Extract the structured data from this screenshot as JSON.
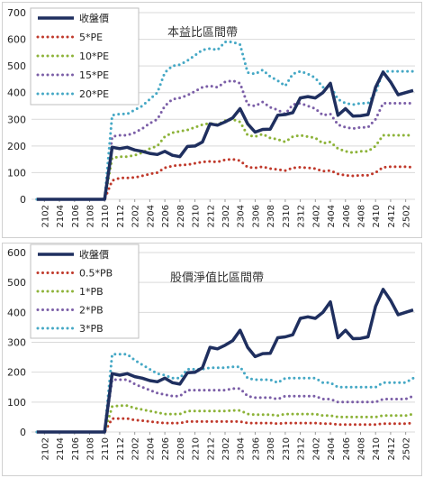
{
  "chart_data": [
    {
      "type": "line",
      "title": "本益比區間帶",
      "xlabel": "",
      "ylabel": "",
      "ylim": [
        0,
        700
      ],
      "yticks": [
        0,
        100,
        200,
        300,
        400,
        500,
        600,
        700
      ],
      "grid": true,
      "legend_position": "top-left",
      "x": [
        "2101",
        "2102",
        "2103",
        "2104",
        "2105",
        "2106",
        "2107",
        "2108",
        "2109",
        "2110",
        "2111",
        "2112",
        "2201",
        "2202",
        "2203",
        "2204",
        "2205",
        "2206",
        "2207",
        "2208",
        "2209",
        "2210",
        "2211",
        "2212",
        "2301",
        "2302",
        "2303",
        "2304",
        "2305",
        "2306",
        "2307",
        "2308",
        "2309",
        "2310",
        "2311",
        "2312",
        "2401",
        "2402",
        "2403",
        "2404",
        "2405",
        "2406",
        "2407",
        "2408",
        "2409",
        "2410",
        "2411",
        "2412",
        "2501",
        "2502",
        "2503"
      ],
      "xtick_labels": [
        "2102",
        "2104",
        "2106",
        "2108",
        "2110",
        "2112",
        "2202",
        "2204",
        "2206",
        "2208",
        "2210",
        "2212",
        "2302",
        "2304",
        "2306",
        "2308",
        "2310",
        "2312",
        "2402",
        "2404",
        "2406",
        "2408",
        "2410",
        "2412",
        "2502"
      ],
      "series": [
        {
          "name": "收盤價",
          "color": "#1f2f5f",
          "style": "solid",
          "values": [
            0,
            0,
            0,
            0,
            0,
            0,
            0,
            0,
            0,
            0,
            195,
            190,
            195,
            185,
            180,
            172,
            168,
            180,
            165,
            160,
            198,
            200,
            215,
            283,
            278,
            290,
            305,
            340,
            283,
            252,
            262,
            263,
            315,
            318,
            325,
            380,
            385,
            380,
            400,
            435,
            315,
            340,
            312,
            313,
            318,
            420,
            477,
            440,
            392,
            400,
            408
          ]
        },
        {
          "name": "5*PE",
          "color": "#c0392b",
          "style": "dotted",
          "values": [
            0,
            0,
            0,
            0,
            0,
            0,
            0,
            0,
            0,
            0,
            70,
            80,
            80,
            82,
            88,
            95,
            100,
            118,
            125,
            128,
            130,
            135,
            140,
            142,
            140,
            148,
            150,
            145,
            120,
            118,
            122,
            115,
            112,
            108,
            118,
            120,
            118,
            115,
            105,
            108,
            95,
            90,
            88,
            90,
            90,
            100,
            120,
            122,
            122,
            122,
            120
          ]
        },
        {
          "name": "10*PE",
          "color": "#8db339",
          "style": "dotted",
          "values": [
            0,
            0,
            0,
            0,
            0,
            0,
            0,
            0,
            0,
            0,
            155,
            160,
            160,
            165,
            175,
            190,
            200,
            235,
            250,
            255,
            260,
            270,
            280,
            285,
            280,
            295,
            300,
            290,
            240,
            235,
            245,
            230,
            225,
            215,
            235,
            240,
            235,
            230,
            210,
            215,
            190,
            180,
            175,
            180,
            180,
            200,
            240,
            240,
            240,
            240,
            240
          ]
        },
        {
          "name": "15*PE",
          "color": "#7b5ea7",
          "style": "dotted",
          "values": [
            0,
            0,
            0,
            0,
            0,
            0,
            0,
            0,
            0,
            0,
            235,
            240,
            240,
            250,
            265,
            285,
            300,
            350,
            375,
            380,
            390,
            405,
            420,
            425,
            420,
            440,
            445,
            435,
            355,
            350,
            365,
            345,
            335,
            320,
            355,
            360,
            350,
            340,
            315,
            320,
            280,
            270,
            265,
            270,
            270,
            300,
            360,
            360,
            360,
            360,
            360
          ]
        },
        {
          "name": "20*PE",
          "color": "#45a8c5",
          "style": "dotted",
          "values": [
            0,
            0,
            0,
            0,
            0,
            0,
            0,
            0,
            0,
            0,
            315,
            320,
            320,
            335,
            350,
            375,
            400,
            475,
            500,
            505,
            520,
            540,
            560,
            565,
            560,
            590,
            590,
            580,
            475,
            470,
            485,
            460,
            445,
            425,
            470,
            480,
            470,
            455,
            420,
            425,
            375,
            360,
            355,
            360,
            360,
            400,
            480,
            480,
            480,
            480,
            480
          ]
        }
      ]
    },
    {
      "type": "line",
      "title": "股價淨值比區間帶",
      "xlabel": "",
      "ylabel": "",
      "ylim": [
        0,
        600
      ],
      "yticks": [
        0,
        100,
        200,
        300,
        400,
        500,
        600
      ],
      "grid": true,
      "legend_position": "top-left",
      "x": [
        "2101",
        "2102",
        "2103",
        "2104",
        "2105",
        "2106",
        "2107",
        "2108",
        "2109",
        "2110",
        "2111",
        "2112",
        "2201",
        "2202",
        "2203",
        "2204",
        "2205",
        "2206",
        "2207",
        "2208",
        "2209",
        "2210",
        "2211",
        "2212",
        "2301",
        "2302",
        "2303",
        "2304",
        "2305",
        "2306",
        "2307",
        "2308",
        "2309",
        "2310",
        "2311",
        "2312",
        "2401",
        "2402",
        "2403",
        "2404",
        "2405",
        "2406",
        "2407",
        "2408",
        "2409",
        "2410",
        "2411",
        "2412",
        "2501",
        "2502",
        "2503"
      ],
      "xtick_labels": [
        "2102",
        "2104",
        "2106",
        "2108",
        "2110",
        "2112",
        "2202",
        "2204",
        "2206",
        "2208",
        "2210",
        "2212",
        "2302",
        "2304",
        "2306",
        "2308",
        "2310",
        "2312",
        "2402",
        "2404",
        "2406",
        "2408",
        "2410",
        "2412",
        "2502"
      ],
      "series": [
        {
          "name": "收盤價",
          "color": "#1f2f5f",
          "style": "solid",
          "values": [
            0,
            0,
            0,
            0,
            0,
            0,
            0,
            0,
            0,
            0,
            195,
            190,
            195,
            185,
            180,
            172,
            168,
            180,
            165,
            160,
            198,
            200,
            215,
            283,
            278,
            290,
            305,
            340,
            283,
            252,
            262,
            263,
            315,
            318,
            325,
            380,
            385,
            380,
            400,
            435,
            315,
            340,
            312,
            313,
            318,
            420,
            477,
            440,
            392,
            400,
            408
          ]
        },
        {
          "name": "0.5*PB",
          "color": "#c0392b",
          "style": "dotted",
          "values": [
            0,
            0,
            0,
            0,
            0,
            0,
            0,
            0,
            0,
            0,
            45,
            45,
            45,
            40,
            38,
            35,
            32,
            30,
            30,
            30,
            35,
            35,
            35,
            35,
            35,
            35,
            35,
            35,
            30,
            30,
            30,
            30,
            28,
            30,
            30,
            30,
            30,
            30,
            28,
            28,
            25,
            25,
            25,
            25,
            25,
            25,
            28,
            28,
            28,
            28,
            30
          ]
        },
        {
          "name": "1*PB",
          "color": "#8db339",
          "style": "dotted",
          "values": [
            0,
            0,
            0,
            0,
            0,
            0,
            0,
            0,
            0,
            0,
            85,
            88,
            88,
            80,
            75,
            70,
            65,
            60,
            60,
            60,
            70,
            70,
            70,
            70,
            70,
            70,
            72,
            72,
            60,
            58,
            58,
            58,
            55,
            60,
            60,
            60,
            60,
            60,
            55,
            55,
            50,
            50,
            50,
            50,
            50,
            50,
            55,
            55,
            55,
            55,
            60
          ]
        },
        {
          "name": "2*PB",
          "color": "#7b5ea7",
          "style": "dotted",
          "values": [
            0,
            0,
            0,
            0,
            0,
            0,
            0,
            0,
            0,
            0,
            175,
            175,
            175,
            160,
            150,
            140,
            130,
            125,
            120,
            120,
            140,
            140,
            140,
            140,
            140,
            140,
            145,
            145,
            120,
            115,
            115,
            115,
            110,
            120,
            120,
            120,
            120,
            120,
            110,
            110,
            100,
            100,
            100,
            100,
            100,
            100,
            110,
            110,
            110,
            110,
            120
          ]
        },
        {
          "name": "3*PB",
          "color": "#45a8c5",
          "style": "dotted",
          "values": [
            0,
            0,
            0,
            0,
            0,
            0,
            0,
            0,
            0,
            0,
            260,
            260,
            260,
            240,
            225,
            210,
            195,
            190,
            180,
            180,
            210,
            210,
            210,
            215,
            215,
            215,
            218,
            218,
            180,
            175,
            175,
            175,
            165,
            180,
            180,
            180,
            180,
            180,
            165,
            165,
            150,
            150,
            150,
            150,
            150,
            150,
            165,
            165,
            165,
            165,
            180
          ]
        }
      ]
    }
  ]
}
